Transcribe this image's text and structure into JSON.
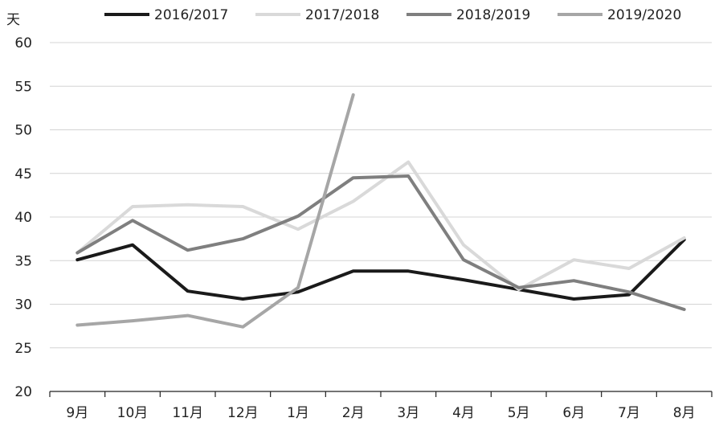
{
  "chart_data": {
    "type": "line",
    "title": "",
    "xlabel": "",
    "ylabel": "天",
    "ylim": [
      20,
      60
    ],
    "yticks": [
      20,
      25,
      30,
      35,
      40,
      45,
      50,
      55,
      60
    ],
    "grid": "horizontal",
    "legend_position": "top",
    "categories": [
      "9月",
      "10月",
      "11月",
      "12月",
      "1月",
      "2月",
      "3月",
      "4月",
      "5月",
      "6月",
      "7月",
      "8月"
    ],
    "series": [
      {
        "name": "2016/2017",
        "color": "#1a1a1a",
        "values": [
          35.1,
          36.8,
          31.5,
          30.6,
          31.4,
          33.8,
          33.8,
          32.8,
          31.7,
          30.6,
          31.1,
          37.4
        ]
      },
      {
        "name": "2017/2018",
        "color": "#d9d9d9",
        "values": [
          35.9,
          41.2,
          41.4,
          41.2,
          38.6,
          41.8,
          46.3,
          36.8,
          31.7,
          35.1,
          34.1,
          37.6
        ]
      },
      {
        "name": "2018/2019",
        "color": "#7f7f7f",
        "values": [
          35.9,
          39.6,
          36.2,
          37.5,
          40.1,
          44.5,
          44.7,
          35.1,
          31.9,
          32.7,
          31.4,
          29.4
        ]
      },
      {
        "name": "2019/2020",
        "color": "#a6a6a6",
        "values": [
          27.6,
          28.1,
          28.7,
          27.4,
          31.9,
          54.0,
          null,
          null,
          null,
          null,
          null,
          null
        ]
      }
    ]
  }
}
